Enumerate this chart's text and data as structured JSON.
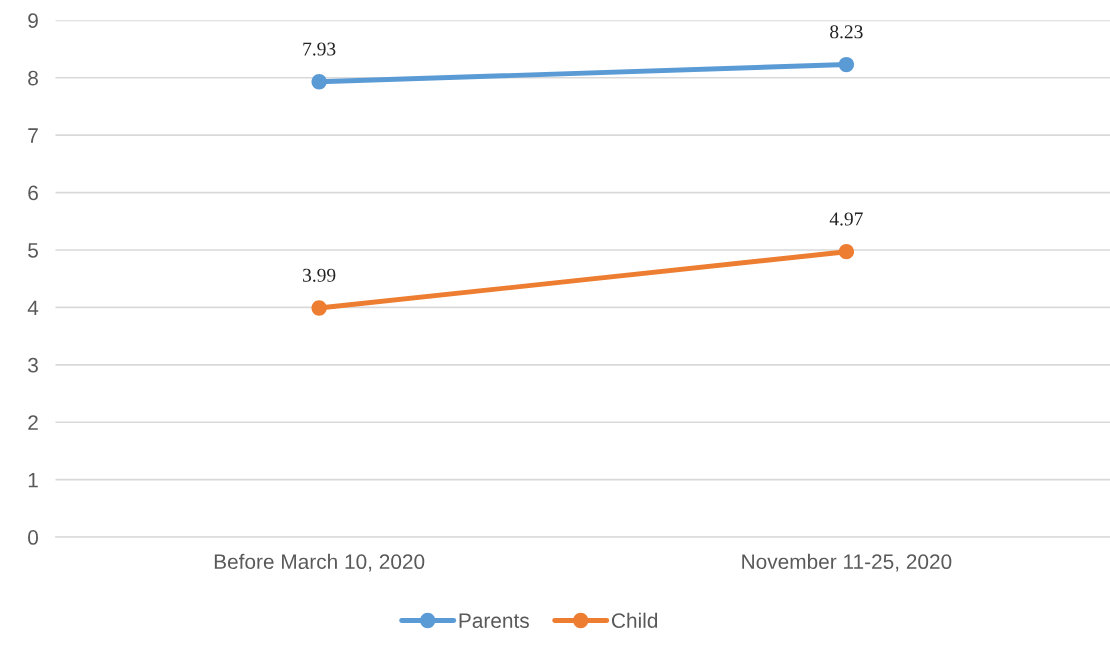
{
  "chart_data": {
    "type": "line",
    "categories": [
      "Before March 10, 2020",
      "November 11-25, 2020"
    ],
    "series": [
      {
        "name": "Parents",
        "color": "#5b9bd5",
        "values": [
          7.93,
          8.23
        ]
      },
      {
        "name": "Child",
        "color": "#ed7d31",
        "values": [
          3.99,
          4.97
        ]
      }
    ],
    "ylim": [
      0,
      9
    ],
    "yticks": [
      0,
      1,
      2,
      3,
      4,
      5,
      6,
      7,
      8,
      9
    ],
    "grid": "y",
    "legend": "bottom",
    "marker": "circle",
    "line_style": "solid",
    "data_labels": true
  }
}
